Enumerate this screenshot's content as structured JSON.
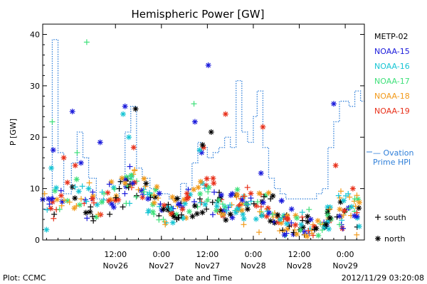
{
  "chart_data": {
    "type": "scatter",
    "title": "Hemispheric Power [GW]",
    "ylabel": "P [GW]",
    "xlabel": "Date and Time",
    "ylim": [
      0,
      42
    ],
    "xlim": [
      "2012-11-25 17:00",
      "2012-11-29 05:00"
    ],
    "yticks": [
      0,
      10,
      20,
      30,
      40
    ],
    "xticks": [
      {
        "t": "2012-11-26 12:00",
        "line1": "12:00",
        "line2": "Nov26"
      },
      {
        "t": "2012-11-27 00:00",
        "line1": "0:00",
        "line2": "Nov27"
      },
      {
        "t": "2012-11-27 12:00",
        "line1": "12:00",
        "line2": "Nov27"
      },
      {
        "t": "2012-11-28 00:00",
        "line1": "0:00",
        "line2": "Nov28"
      },
      {
        "t": "2012-11-28 12:00",
        "line1": "12:00",
        "line2": "Nov28"
      },
      {
        "t": "2012-11-29 00:00",
        "line1": "0:00",
        "line2": "Nov29"
      }
    ],
    "legend_position": "right",
    "satellites": [
      {
        "name": "METP-02",
        "color": "#000000"
      },
      {
        "name": "NOAA-15",
        "color": "#1a1adb"
      },
      {
        "name": "NOAA-16",
        "color": "#17c5d4"
      },
      {
        "name": "NOAA-17",
        "color": "#3fe07a"
      },
      {
        "name": "NOAA-18",
        "color": "#f29a1a"
      },
      {
        "name": "NOAA-19",
        "color": "#e8301a"
      }
    ],
    "ovation": {
      "label_line1": "— Ovation",
      "label_line2": "Prime HPI",
      "color": "#2f7fd9",
      "steps": [
        [
          "2012-11-25 17:00",
          6
        ],
        [
          "2012-11-25 19:30",
          39
        ],
        [
          "2012-11-25 21:00",
          17
        ],
        [
          "2012-11-25 22:30",
          9
        ],
        [
          "2012-11-26 00:30",
          15
        ],
        [
          "2012-11-26 02:00",
          21
        ],
        [
          "2012-11-26 03:30",
          16
        ],
        [
          "2012-11-26 05:00",
          12
        ],
        [
          "2012-11-26 07:00",
          8
        ],
        [
          "2012-11-26 10:00",
          7
        ],
        [
          "2012-11-26 13:00",
          12
        ],
        [
          "2012-11-26 14:30",
          21
        ],
        [
          "2012-11-26 16:00",
          26
        ],
        [
          "2012-11-26 17:30",
          14
        ],
        [
          "2012-11-26 19:00",
          12
        ],
        [
          "2012-11-26 21:00",
          10
        ],
        [
          "2012-11-26 23:00",
          9
        ],
        [
          "2012-11-27 02:00",
          8
        ],
        [
          "2012-11-27 05:00",
          11
        ],
        [
          "2012-11-27 06:30",
          10
        ],
        [
          "2012-11-27 08:00",
          15
        ],
        [
          "2012-11-27 09:30",
          19
        ],
        [
          "2012-11-27 10:30",
          18
        ],
        [
          "2012-11-27 12:00",
          16
        ],
        [
          "2012-11-27 13:30",
          17
        ],
        [
          "2012-11-27 15:00",
          18
        ],
        [
          "2012-11-27 16:30",
          20
        ],
        [
          "2012-11-27 18:00",
          18
        ],
        [
          "2012-11-27 19:30",
          31
        ],
        [
          "2012-11-27 21:00",
          21
        ],
        [
          "2012-11-27 22:30",
          19
        ],
        [
          "2012-11-28 00:00",
          24
        ],
        [
          "2012-11-28 01:00",
          29
        ],
        [
          "2012-11-28 02:30",
          18
        ],
        [
          "2012-11-28 04:00",
          12
        ],
        [
          "2012-11-28 05:30",
          10
        ],
        [
          "2012-11-28 07:00",
          9
        ],
        [
          "2012-11-28 08:30",
          8
        ],
        [
          "2012-11-28 11:00",
          8
        ],
        [
          "2012-11-28 14:00",
          8
        ],
        [
          "2012-11-28 16:30",
          9
        ],
        [
          "2012-11-28 18:00",
          10
        ],
        [
          "2012-11-28 19:30",
          18
        ],
        [
          "2012-11-28 21:00",
          23
        ],
        [
          "2012-11-28 22:30",
          27
        ],
        [
          "2012-11-29 01:00",
          26
        ],
        [
          "2012-11-29 02:30",
          29
        ],
        [
          "2012-11-29 04:00",
          27
        ]
      ]
    },
    "symbol_legend": [
      {
        "symbol": "+",
        "label": "south"
      },
      {
        "symbol": "*",
        "label": "north"
      }
    ],
    "points": [
      {
        "sat": "NOAA-15",
        "m": "*",
        "t": "2012-11-25 19:45",
        "y": 17.5
      },
      {
        "sat": "NOAA-15",
        "m": "*",
        "t": "2012-11-26 00:45",
        "y": 25
      },
      {
        "sat": "NOAA-15",
        "m": "*",
        "t": "2012-11-26 08:00",
        "y": 19
      },
      {
        "sat": "NOAA-15",
        "m": "*",
        "t": "2012-11-26 14:30",
        "y": 26
      },
      {
        "sat": "NOAA-15",
        "m": "*",
        "t": "2012-11-27 08:45",
        "y": 23
      },
      {
        "sat": "NOAA-15",
        "m": "*",
        "t": "2012-11-27 12:15",
        "y": 34
      },
      {
        "sat": "NOAA-15",
        "m": "*",
        "t": "2012-11-28 21:00",
        "y": 26.5
      },
      {
        "sat": "NOAA-15",
        "m": "*",
        "t": "2012-11-26 03:00",
        "y": 15
      },
      {
        "sat": "NOAA-15",
        "m": "*",
        "t": "2012-11-26 16:30",
        "y": 11
      },
      {
        "sat": "NOAA-15",
        "m": "*",
        "t": "2012-11-27 10:30",
        "y": 17
      },
      {
        "sat": "NOAA-15",
        "m": "*",
        "t": "2012-11-27 18:30",
        "y": 9
      },
      {
        "sat": "NOAA-15",
        "m": "*",
        "t": "2012-11-28 02:00",
        "y": 13
      },
      {
        "sat": "NOAA-15",
        "m": "*",
        "t": "2012-11-28 10:00",
        "y": 6
      },
      {
        "sat": "NOAA-15",
        "m": "*",
        "t": "2012-11-28 15:00",
        "y": 4
      },
      {
        "sat": "NOAA-15",
        "m": "*",
        "t": "2012-11-26 20:30",
        "y": 8
      },
      {
        "sat": "NOAA-15",
        "m": "*",
        "t": "2012-11-27 04:30",
        "y": 7
      },
      {
        "sat": "NOAA-15",
        "m": "*",
        "t": "2012-11-25 18:30",
        "y": 8
      },
      {
        "sat": "NOAA-15",
        "m": "*",
        "t": "2012-11-26 11:00",
        "y": 7
      },
      {
        "sat": "NOAA-16",
        "m": "*",
        "t": "2012-11-25 19:15",
        "y": 14
      },
      {
        "sat": "NOAA-16",
        "m": "*",
        "t": "2012-11-26 14:00",
        "y": 24.5
      },
      {
        "sat": "NOAA-16",
        "m": "*",
        "t": "2012-11-26 15:30",
        "y": 20
      },
      {
        "sat": "NOAA-16",
        "m": "*",
        "t": "2012-11-27 10:00",
        "y": 17.5
      },
      {
        "sat": "NOAA-16",
        "m": "*",
        "t": "2012-11-26 05:00",
        "y": 10
      },
      {
        "sat": "NOAA-16",
        "m": "*",
        "t": "2012-11-27 02:30",
        "y": 6
      },
      {
        "sat": "NOAA-16",
        "m": "*",
        "t": "2012-11-28 12:30",
        "y": 3
      },
      {
        "sat": "NOAA-16",
        "m": "*",
        "t": "2012-11-28 18:30",
        "y": 2.5
      },
      {
        "sat": "NOAA-16",
        "m": "*",
        "t": "2012-11-25 18:00",
        "y": 2
      },
      {
        "sat": "NOAA-16",
        "m": "*",
        "t": "2012-11-27 20:00",
        "y": 6
      },
      {
        "sat": "NOAA-16",
        "m": "*",
        "t": "2012-11-28 07:00",
        "y": 4
      },
      {
        "sat": "NOAA-17",
        "m": "+",
        "t": "2012-11-25 19:30",
        "y": 23
      },
      {
        "sat": "NOAA-17",
        "m": "+",
        "t": "2012-11-26 04:30",
        "y": 38.5
      },
      {
        "sat": "NOAA-17",
        "m": "+",
        "t": "2012-11-27 08:30",
        "y": 26.5
      },
      {
        "sat": "NOAA-17",
        "m": "+",
        "t": "2012-11-26 02:00",
        "y": 17
      },
      {
        "sat": "NOAA-17",
        "m": "+",
        "t": "2012-11-26 09:00",
        "y": 9
      },
      {
        "sat": "NOAA-17",
        "m": "+",
        "t": "2012-11-26 22:00",
        "y": 5
      },
      {
        "sat": "NOAA-17",
        "m": "+",
        "t": "2012-11-27 16:00",
        "y": 7
      },
      {
        "sat": "NOAA-17",
        "m": "+",
        "t": "2012-11-28 05:00",
        "y": 5
      },
      {
        "sat": "NOAA-17",
        "m": "+",
        "t": "2012-11-28 22:30",
        "y": 3
      },
      {
        "sat": "NOAA-17",
        "m": "+",
        "t": "2012-11-29 02:30",
        "y": 8
      },
      {
        "sat": "NOAA-17",
        "m": "+",
        "t": "2012-11-27 00:30",
        "y": 4
      },
      {
        "sat": "NOAA-17",
        "m": "+",
        "t": "2012-11-27 22:00",
        "y": 7
      },
      {
        "sat": "NOAA-18",
        "m": "+",
        "t": "2012-11-26 17:00",
        "y": 13.5
      },
      {
        "sat": "NOAA-18",
        "m": "+",
        "t": "2012-11-26 07:30",
        "y": 5
      },
      {
        "sat": "NOAA-18",
        "m": "+",
        "t": "2012-11-27 01:00",
        "y": 3
      },
      {
        "sat": "NOAA-18",
        "m": "+",
        "t": "2012-11-27 15:30",
        "y": 5
      },
      {
        "sat": "NOAA-18",
        "m": "+",
        "t": "2012-11-28 01:30",
        "y": 1.5
      },
      {
        "sat": "NOAA-18",
        "m": "+",
        "t": "2012-11-28 13:30",
        "y": 1
      },
      {
        "sat": "NOAA-18",
        "m": "+",
        "t": "2012-11-29 03:00",
        "y": 1
      },
      {
        "sat": "NOAA-18",
        "m": "+",
        "t": "2012-11-25 17:30",
        "y": 9
      },
      {
        "sat": "NOAA-18",
        "m": "+",
        "t": "2012-11-27 21:30",
        "y": 3
      },
      {
        "sat": "NOAA-18",
        "m": "+",
        "t": "2012-11-28 20:00",
        "y": 6
      },
      {
        "sat": "NOAA-19",
        "m": "*",
        "t": "2012-11-25 22:30",
        "y": 16
      },
      {
        "sat": "NOAA-19",
        "m": "*",
        "t": "2012-11-26 01:30",
        "y": 14.5
      },
      {
        "sat": "NOAA-19",
        "m": "*",
        "t": "2012-11-26 16:45",
        "y": 18
      },
      {
        "sat": "NOAA-19",
        "m": "*",
        "t": "2012-11-27 11:00",
        "y": 18
      },
      {
        "sat": "NOAA-19",
        "m": "*",
        "t": "2012-11-27 16:45",
        "y": 24.5
      },
      {
        "sat": "NOAA-19",
        "m": "*",
        "t": "2012-11-28 02:30",
        "y": 22
      },
      {
        "sat": "NOAA-19",
        "m": "*",
        "t": "2012-11-28 21:30",
        "y": 14.5
      },
      {
        "sat": "NOAA-19",
        "m": "*",
        "t": "2012-11-29 02:00",
        "y": 10
      },
      {
        "sat": "NOAA-19",
        "m": "*",
        "t": "2012-11-26 06:00",
        "y": 8
      },
      {
        "sat": "NOAA-19",
        "m": "*",
        "t": "2012-11-27 05:30",
        "y": 6
      },
      {
        "sat": "NOAA-19",
        "m": "*",
        "t": "2012-11-28 09:00",
        "y": 4
      },
      {
        "sat": "NOAA-19",
        "m": "*",
        "t": "2012-11-27 13:30",
        "y": 12
      },
      {
        "sat": "METP-02",
        "m": "*",
        "t": "2012-11-26 17:15",
        "y": 25.5
      },
      {
        "sat": "METP-02",
        "m": "*",
        "t": "2012-11-27 10:45",
        "y": 18.5
      },
      {
        "sat": "METP-02",
        "m": "*",
        "t": "2012-11-27 13:00",
        "y": 21
      },
      {
        "sat": "METP-02",
        "m": "+",
        "t": "2012-11-25 20:00",
        "y": 5
      },
      {
        "sat": "METP-02",
        "m": "+",
        "t": "2012-11-26 10:30",
        "y": 5
      },
      {
        "sat": "METP-02",
        "m": "*",
        "t": "2012-11-26 20:00",
        "y": 11
      },
      {
        "sat": "METP-02",
        "m": "+",
        "t": "2012-11-27 04:00",
        "y": 4
      },
      {
        "sat": "METP-02",
        "m": "*",
        "t": "2012-11-27 18:00",
        "y": 5
      },
      {
        "sat": "METP-02",
        "m": "+",
        "t": "2012-11-28 04:30",
        "y": 8
      },
      {
        "sat": "METP-02",
        "m": "+",
        "t": "2012-11-28 16:00",
        "y": 2
      },
      {
        "sat": "METP-02",
        "m": "*",
        "t": "2012-11-28 19:00",
        "y": 3
      },
      {
        "sat": "METP-02",
        "m": "+",
        "t": "2012-11-26 13:00",
        "y": 10
      },
      {
        "sat": "METP-02",
        "m": "*",
        "t": "2012-11-27 22:30",
        "y": 6
      }
    ],
    "cloud": {
      "centers": [
        [
          "2012-11-25 17:00",
          7
        ],
        [
          "2012-11-26 00:00",
          8
        ],
        [
          "2012-11-26 06:00",
          7
        ],
        [
          "2012-11-26 12:00",
          8
        ],
        [
          "2012-11-26 16:00",
          11
        ],
        [
          "2012-11-26 20:00",
          9
        ],
        [
          "2012-11-27 00:00",
          6
        ],
        [
          "2012-11-27 04:00",
          6
        ],
        [
          "2012-11-27 08:00",
          8
        ],
        [
          "2012-11-27 12:00",
          9
        ],
        [
          "2012-11-27 16:00",
          6
        ],
        [
          "2012-11-27 20:00",
          7
        ],
        [
          "2012-11-28 00:00",
          7
        ],
        [
          "2012-11-28 04:00",
          6
        ],
        [
          "2012-11-28 08:00",
          4
        ],
        [
          "2012-11-28 12:00",
          2.5
        ],
        [
          "2012-11-28 16:00",
          2.5
        ],
        [
          "2012-11-28 20:00",
          4
        ],
        [
          "2012-11-29 00:00",
          6
        ],
        [
          "2012-11-29 04:00",
          6
        ]
      ],
      "spread": 3,
      "per_segment": 20,
      "seed": 7
    }
  },
  "footer": {
    "left": "Plot: CCMC",
    "center": "Date and Time",
    "right": "2012/11/29 03:20:08"
  }
}
